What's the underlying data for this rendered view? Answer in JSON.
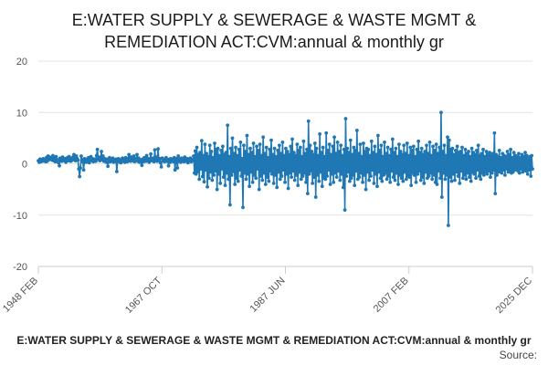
{
  "chart_data": {
    "type": "line",
    "title_lines": [
      "E:WATER SUPPLY & SEWERAGE & WASTE MGMT &",
      "REMEDIATION ACT:CVM:annual & monthly gr"
    ],
    "ylim": [
      -20,
      20
    ],
    "y_ticks": [
      20,
      10,
      0,
      -10,
      -20
    ],
    "x_ticks": [
      "1948 FEB",
      "1967 OCT",
      "1987 JUN",
      "2007 FEB",
      "2025 DEC"
    ],
    "grid": "horizontal",
    "series": [
      {
        "name": "E:WATER SUPPLY & SEWERAGE & WASTE MGMT & REMEDIATION ACT:CVM:annual & monthly gr",
        "color": "#1f77b4",
        "x_range": [
          "1948 FEB",
          "2025 DEC"
        ],
        "values": [
          0.6,
          0.3,
          0.9,
          0.4,
          0.8,
          0.5,
          1.0,
          0.6,
          0.7,
          0.4,
          1.2,
          0.5,
          1.5,
          0.8,
          1.3,
          0.9,
          1.1,
          0.7,
          1.6,
          0.6,
          1.2,
          0.4,
          1.4,
          0.5,
          0.8,
          0.2,
          -0.4,
          1.1,
          0.9,
          0.5,
          1.3,
          0.7,
          0.6,
          1.0,
          0.3,
          0.9,
          1.2,
          0.6,
          1.4,
          0.8,
          0.5,
          1.1,
          0.7,
          1.3,
          1.8,
          0.9,
          0.6,
          1.5,
          1.0,
          0.7,
          -1.0,
          -2.5,
          -0.8,
          1.5,
          0.8,
          0.4,
          -1.2,
          1.0,
          0.6,
          0.3,
          0.9,
          0.5,
          1.2,
          0.2,
          0.8,
          1.4,
          0.6,
          1.0,
          0.4,
          0.7,
          0.9,
          0.5,
          1.6,
          2.8,
          0.9,
          1.3,
          0.6,
          1.1,
          2.4,
          0.8,
          1.5,
          0.5,
          1.0,
          0.7,
          0.3,
          0.9,
          -0.5,
          0.6,
          1.2,
          0.4,
          0.8,
          0.6,
          1.1,
          0.3,
          0.7,
          0.5,
          0.9,
          -1.5,
          0.6,
          1.0,
          0.4,
          0.8,
          0.2,
          0.7,
          1.1,
          0.5,
          0.9,
          0.3,
          1.2,
          0.6,
          0.4,
          1.0,
          1.8,
          0.7,
          0.5,
          1.3,
          0.8,
          0.6,
          1.5,
          0.4,
          1.0,
          0.7,
          1.8,
          0.5,
          1.1,
          0.3,
          0.8,
          0.6,
          -0.3,
          0.9,
          0.4,
          1.2,
          0.7,
          0.5,
          1.6,
          0.8,
          1.0,
          0.3,
          0.7,
          1.9,
          0.6,
          0.9,
          1.1,
          0.4,
          2.7,
          0.8,
          1.3,
          0.5,
          2.9,
          0.7,
          1.0,
          0.2,
          -0.6,
          1.1,
          0.6,
          0.9,
          0.4,
          0.8,
          1.2,
          0.5,
          0.7,
          -0.4,
          0.9,
          0.3,
          1.0,
          0.6,
          0.8,
          0.4,
          1.2,
          -1.2,
          0.7,
          1.0,
          -0.8,
          1.5,
          0.5,
          0.9,
          0.3,
          1.1,
          0.6,
          0.8,
          0.4,
          1.3,
          0.7,
          0.5,
          1.0,
          0.2,
          0.9,
          0.6,
          1.1,
          0.4,
          0.8,
          0.7,
          1.5,
          -1.8,
          2.5,
          -2.0,
          3.2,
          -1.5,
          1.8,
          -3.0,
          2.2,
          -1.0,
          4.5,
          -2.5,
          1.6,
          -3.5,
          3.8,
          -1.2,
          2.0,
          -4.5,
          1.4,
          -2.8,
          3.6,
          -1.6,
          2.4,
          -3.2,
          1.2,
          -2.2,
          4.0,
          -1.4,
          2.8,
          -5.0,
          3.0,
          -2.0,
          1.6,
          -3.8,
          2.6,
          -1.0,
          3.4,
          -2.6,
          1.8,
          -4.2,
          2.2,
          -1.8,
          7.5,
          -3.0,
          1.4,
          -8.0,
          3.0,
          -2.2,
          5.0,
          -1.5,
          2.0,
          -4.0,
          3.2,
          -2.8,
          1.6,
          -3.4,
          2.8,
          -1.2,
          4.2,
          -2.4,
          1.0,
          -8.5,
          3.6,
          -1.8,
          2.4,
          -3.0,
          5.5,
          -2.0,
          1.8,
          -4.4,
          3.0,
          -1.6,
          2.2,
          -3.6,
          4.0,
          -2.2,
          1.4,
          -2.8,
          3.4,
          -1.0,
          2.6,
          -5.0,
          3.8,
          -2.4,
          1.6,
          -3.2,
          5.2,
          -1.8,
          2.0,
          -4.0,
          3.2,
          -2.6,
          1.2,
          -3.4,
          2.8,
          -1.4,
          4.6,
          -2.0,
          1.8,
          -3.8,
          3.0,
          -2.2,
          1.4,
          -4.6,
          2.6,
          -1.6,
          3.6,
          -3.0,
          2.0,
          -2.4,
          4.2,
          -1.2,
          1.6,
          -3.6,
          3.0,
          -2.0,
          2.4,
          -4.8,
          1.8,
          -1.8,
          3.4,
          -2.6,
          4.8,
          -1.4,
          2.2,
          -3.2,
          1.6,
          -2.2,
          3.8,
          -4.2,
          2.6,
          -1.6,
          3.2,
          -3.0,
          1.4,
          -2.4,
          4.4,
          -1.8,
          2.0,
          -3.6,
          2.8,
          -5.8,
          8.3,
          -2.0,
          3.6,
          -1.4,
          2.4,
          -3.8,
          1.8,
          -2.6,
          4.0,
          -6.5,
          3.0,
          -2.2,
          1.6,
          -3.4,
          5.8,
          -1.6,
          2.2,
          -4.4,
          3.2,
          -2.8,
          1.4,
          -3.0,
          6.0,
          -2.4,
          2.6,
          -1.2,
          3.8,
          -4.0,
          1.8,
          -2.0,
          3.4,
          -3.6,
          5.2,
          -1.8,
          2.0,
          -2.6,
          4.2,
          -1.4,
          2.4,
          -3.2,
          3.6,
          -2.0,
          1.6,
          -4.6,
          2.8,
          -9.0,
          8.8,
          -2.4,
          3.0,
          -1.6,
          2.2,
          -3.4,
          4.6,
          -2.8,
          1.8,
          -2.2,
          3.2,
          -4.2,
          2.6,
          -1.4,
          6.5,
          -3.0,
          2.0,
          -2.6,
          3.8,
          -1.8,
          1.4,
          -3.6,
          4.0,
          -2.2,
          2.4,
          -5.0,
          3.0,
          -1.6,
          2.8,
          -3.2,
          1.6,
          -2.4,
          4.4,
          -1.2,
          2.2,
          -3.8,
          3.4,
          -2.0,
          1.8,
          -4.4,
          5.5,
          -1.6,
          2.6,
          -2.8,
          3.6,
          -3.4,
          1.4,
          -2.2,
          4.2,
          -1.8,
          2.0,
          -3.0,
          3.2,
          -2.4,
          1.6,
          -3.6,
          2.8,
          -1.4,
          4.8,
          -2.6,
          2.2,
          -3.2,
          3.0,
          -1.8,
          1.4,
          -4.0,
          3.8,
          -2.2,
          2.4,
          -2.8,
          1.8,
          -3.4,
          3.6,
          -1.6,
          2.0,
          -3.0,
          4.0,
          -2.4,
          1.6,
          -2.6,
          3.2,
          -4.2,
          2.6,
          -1.8,
          3.4,
          -2.2,
          1.4,
          -3.6,
          2.8,
          -2.0,
          4.4,
          -1.4,
          2.2,
          -3.2,
          3.0,
          -2.6,
          1.8,
          -3.8,
          2.4,
          -1.6,
          3.6,
          -2.8,
          2.0,
          -2.4,
          4.2,
          -1.8,
          1.6,
          -3.0,
          3.4,
          -2.2,
          2.6,
          -3.6,
          3.8,
          -4.0,
          2.0,
          -1.4,
          3.2,
          -2.8,
          10.0,
          -6.5,
          2.4,
          -1.8,
          3.6,
          -3.0,
          1.6,
          -2.2,
          5.2,
          -12.0,
          4.6,
          -2.6,
          2.8,
          -3.4,
          3.0,
          -2.0,
          1.8,
          -3.2,
          2.6,
          -1.6,
          3.4,
          -2.4,
          2.2,
          -3.8,
          2.4,
          -1.4,
          3.2,
          -2.8,
          1.6,
          -2.2,
          2.8,
          -3.0,
          2.0,
          -1.8,
          2.4,
          -2.6,
          1.4,
          -3.4,
          3.0,
          -1.6,
          2.2,
          -2.0,
          1.8,
          -2.8,
          2.6,
          -1.2,
          3.6,
          -2.4,
          1.6,
          -3.0,
          2.0,
          -1.8,
          2.8,
          -2.2,
          1.4,
          -1.6,
          2.4,
          -2.0,
          1.8,
          -1.4,
          2.2,
          -2.6,
          1.6,
          -1.8,
          2.0,
          -1.2,
          6.0,
          -5.8,
          1.8,
          -2.2,
          1.4,
          -1.6,
          2.6,
          -1.4,
          1.2,
          -1.8,
          2.0,
          -1.2,
          1.6,
          -2.2,
          1.4,
          -1.0,
          2.4,
          -1.6,
          1.8,
          -1.4,
          2.8,
          -1.8,
          1.2,
          -1.6,
          2.2,
          -1.2,
          1.6,
          -1.0,
          1.4,
          -1.4,
          2.0,
          -1.8,
          1.2,
          -1.0,
          1.8,
          -1.6,
          1.4,
          -1.2,
          2.2,
          -1.4,
          1.6,
          -2.0,
          1.0,
          -1.2,
          1.4,
          -2.4,
          1.6,
          -1.0
        ]
      }
    ]
  },
  "legend": {
    "label": "E:WATER SUPPLY & SEWERAGE & WASTE MGMT & REMEDIATION ACT:CVM:annual & monthly gr"
  },
  "source": {
    "label": "Source:"
  }
}
